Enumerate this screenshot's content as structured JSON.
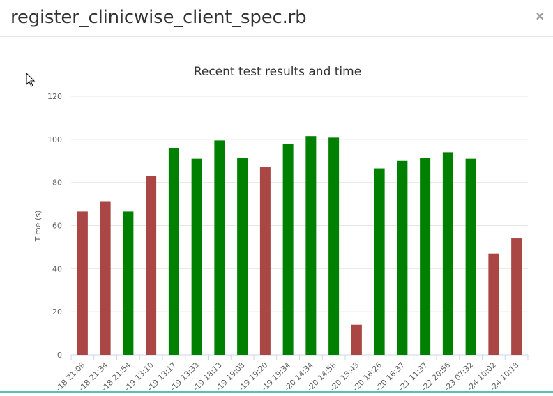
{
  "modal": {
    "title": "register_clinicwise_client_spec.rb",
    "close_label": "×"
  },
  "colors": {
    "pass": "#008000",
    "fail": "#aa4643",
    "grid": "#e6e6e6",
    "axis_text": "#606060"
  },
  "chart_data": {
    "type": "bar",
    "title": "Recent test results and time",
    "xlabel": "",
    "ylabel": "Time (s)",
    "ylim": [
      0,
      120
    ],
    "yticks": [
      0,
      20,
      40,
      60,
      80,
      100,
      120
    ],
    "grid": true,
    "legend": "none",
    "categories": [
      "…-18 21:08",
      "…-18 21:34",
      "…-18 21:54",
      "…-19 13:10",
      "…-19 13:17",
      "…-19 13:33",
      "…-19 18:13",
      "…-19 19:08",
      "…-19 19:20",
      "…-19 19:34",
      "…-20 14:34",
      "…-20 14:58",
      "…-20 15:43",
      "…-20 16:26",
      "…-20 16:37",
      "…-21 11:37",
      "…-22 20:56",
      "…-23 07:32",
      "…-24 10:02",
      "…-24 10:18"
    ],
    "values": [
      66.5,
      71,
      66.5,
      83,
      96,
      91,
      99.5,
      91.5,
      87,
      98,
      101.5,
      100.8,
      14,
      86.5,
      90,
      91.5,
      94,
      91,
      47,
      54
    ],
    "status": [
      "fail",
      "fail",
      "pass",
      "fail",
      "pass",
      "pass",
      "pass",
      "pass",
      "fail",
      "pass",
      "pass",
      "pass",
      "fail",
      "pass",
      "pass",
      "pass",
      "pass",
      "pass",
      "fail",
      "fail"
    ]
  }
}
